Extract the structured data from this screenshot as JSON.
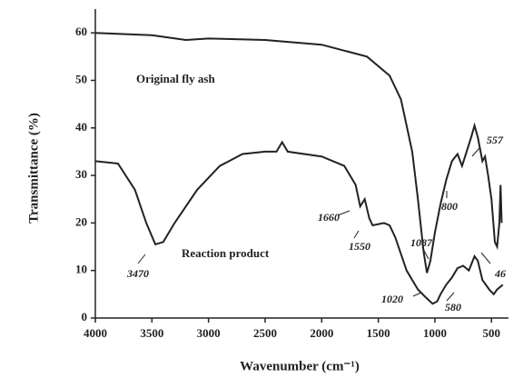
{
  "chart_data": {
    "type": "line",
    "xlabel": "Wavenumber (cm⁻¹)",
    "ylabel": "Transmittance (%)",
    "xlim": [
      4000,
      350
    ],
    "xticks": [
      4000,
      3500,
      3000,
      2500,
      2000,
      1500,
      1000,
      500
    ],
    "ylim": [
      0,
      65
    ],
    "yticks": [
      0,
      10,
      20,
      30,
      40,
      50,
      60
    ],
    "series": [
      {
        "name": "Original fly ash",
        "color": "#222222",
        "x": [
          4000,
          3500,
          3200,
          3000,
          2500,
          2000,
          1600,
          1400,
          1300,
          1200,
          1150,
          1100,
          1070,
          1040,
          1000,
          950,
          900,
          850,
          800,
          760,
          720,
          680,
          650,
          620,
          580,
          557,
          530,
          500,
          470,
          450,
          430,
          420,
          410
        ],
        "values": [
          60,
          59.5,
          58.5,
          58.8,
          58.5,
          57.5,
          55,
          51,
          46,
          35,
          25,
          14,
          9.5,
          12,
          18,
          24,
          29,
          33,
          34.5,
          32,
          35,
          38,
          40.5,
          38,
          33,
          34,
          30,
          25,
          16,
          15,
          20,
          28,
          20
        ]
      },
      {
        "name": "Reaction product",
        "color": "#222222",
        "x": [
          4000,
          3800,
          3650,
          3550,
          3470,
          3400,
          3300,
          3100,
          2900,
          2700,
          2500,
          2400,
          2350,
          2300,
          2000,
          1800,
          1700,
          1660,
          1620,
          1580,
          1550,
          1450,
          1400,
          1350,
          1250,
          1150,
          1087,
          1020,
          980,
          950,
          900,
          850,
          800,
          750,
          700,
          650,
          620,
          580,
          550,
          520,
          480,
          450,
          400
        ],
        "values": [
          33,
          32.5,
          27,
          20,
          15.5,
          16,
          20,
          27,
          32,
          34.5,
          35,
          35,
          37,
          35,
          34,
          32,
          28,
          23.5,
          25,
          21,
          19.5,
          20,
          19.5,
          17,
          10,
          6,
          4.5,
          3,
          3.5,
          5,
          7,
          8.5,
          10.5,
          11,
          10,
          13,
          12,
          8,
          7,
          6,
          5,
          6,
          7
        ]
      }
    ],
    "annotations": [
      "3470",
      "1660",
      "1550",
      "1020",
      "1087",
      "800",
      "580",
      "557",
      "46"
    ]
  }
}
